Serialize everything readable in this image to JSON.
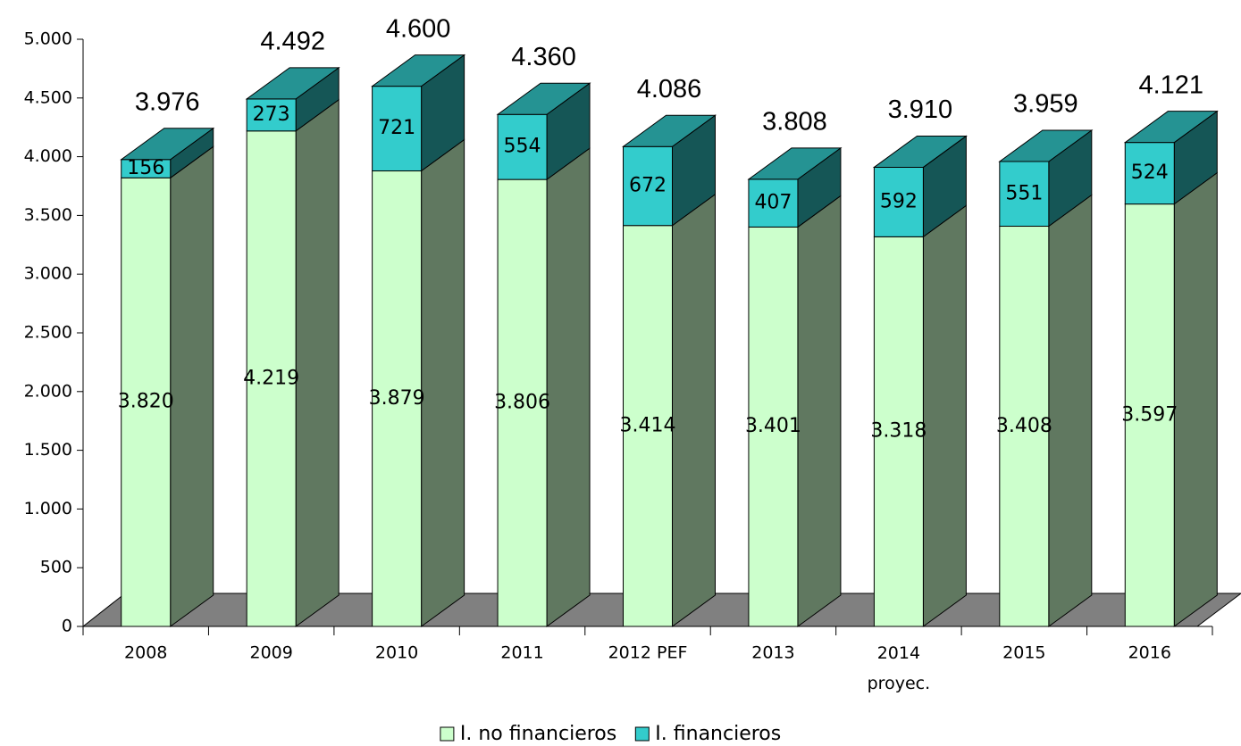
{
  "chart_data": {
    "type": "bar3d_stacked",
    "categories": [
      "2008",
      "2009",
      "2010",
      "2011",
      "2012 PEF",
      "2013",
      "2014\nproyec.",
      "2015",
      "2016"
    ],
    "series": [
      {
        "name": "I. no financieros",
        "color": "#ccffcc",
        "values": [
          3820,
          4219,
          3879,
          3806,
          3414,
          3401,
          3318,
          3408,
          3597
        ],
        "value_labels": [
          "3.820",
          "4.219",
          "3.879",
          "3.806",
          "3.414",
          "3.401",
          "3.318",
          "3.408",
          "3.597"
        ]
      },
      {
        "name": "I. financieros",
        "color": "#33cccc",
        "values": [
          156,
          273,
          721,
          554,
          672,
          407,
          592,
          551,
          524
        ]
      }
    ],
    "totals": {
      "values": [
        3976,
        4492,
        4600,
        4360,
        4086,
        3808,
        3910,
        3959,
        4121
      ],
      "value_labels": [
        "3.976",
        "4.492",
        "4.600",
        "4.360",
        "4.086",
        "3.808",
        "3.910",
        "3.959",
        "4.121"
      ]
    },
    "ylim": [
      0,
      5000
    ],
    "yticks": [
      0,
      500,
      {
        "value": 1000,
        "label": "1.000"
      },
      {
        "value": 1500,
        "label": "1.500"
      },
      {
        "value": 2000,
        "label": "2.000"
      },
      {
        "value": 2500,
        "label": "2.500"
      },
      {
        "value": 3000,
        "label": "3.000"
      },
      {
        "value": 3500,
        "label": "3.500"
      },
      {
        "value": 4000,
        "label": "4.000"
      },
      {
        "value": 4500,
        "label": "4.500"
      },
      {
        "value": 5000,
        "label": "5.000"
      }
    ],
    "legend": "bottom"
  }
}
